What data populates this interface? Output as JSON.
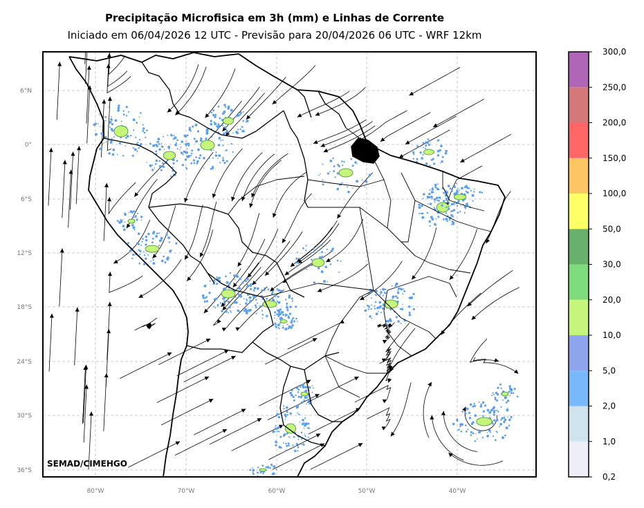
{
  "title": "Precipitação Microfisica em 3h (mm) e Linhas de Corrente",
  "subtitle": "Iniciado em 06/04/2026 12 UTC - Previsão para 20/04/2026 06 UTC - WRF 12km",
  "credit": "SEMAD/CIMEHGO",
  "lat_labels": [
    "6°N",
    "0°",
    "6°S",
    "12°S",
    "18°S",
    "24°S",
    "30°S",
    "36°S"
  ],
  "lon_labels": [
    "80°W",
    "70°W",
    "60°W",
    "50°W",
    "40°W"
  ],
  "colorbar": {
    "labels": [
      "0,2",
      "1,0",
      "2,0",
      "5,0",
      "10,0",
      "20,0",
      "30,0",
      "50,0",
      "100,0",
      "150,0",
      "200,0",
      "250,0",
      "300,0"
    ],
    "colors": [
      "#eeeef9",
      "#cfe3ee",
      "#77b9fb",
      "#8ea5ee",
      "#c5f57a",
      "#7fdc7c",
      "#69b06a",
      "#ffff66",
      "#fec563",
      "#ff6666",
      "#d5787a",
      "#b065b6"
    ]
  }
}
